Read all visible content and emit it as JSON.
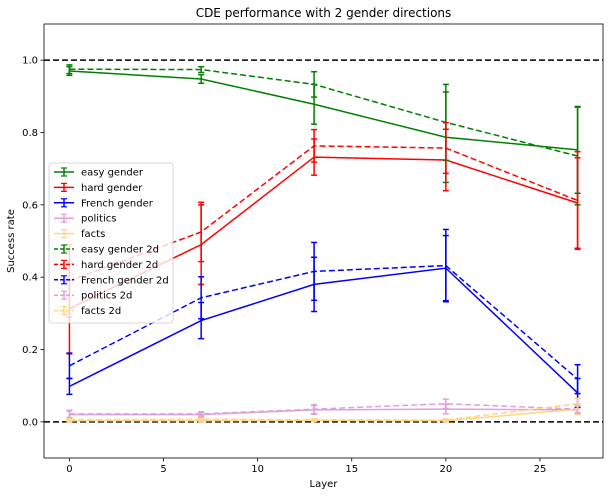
{
  "chart_data": {
    "type": "line",
    "title": "CDE performance with 2 gender directions",
    "xlabel": "Layer",
    "ylabel": "Success rate",
    "xlim": [
      -1.35,
      28.35
    ],
    "ylim": [
      -0.1,
      1.1
    ],
    "xticks": [
      0,
      5,
      10,
      15,
      20,
      25
    ],
    "yticks": [
      0.0,
      0.2,
      0.4,
      0.6,
      0.8,
      1.0
    ],
    "reference_lines": [
      0.0,
      1.0
    ],
    "x": [
      0,
      7,
      13,
      20,
      27
    ],
    "legend_position": "center-left",
    "series": [
      {
        "name": "easy gender",
        "color": "#008000",
        "dash": "solid",
        "values": [
          0.97,
          0.948,
          0.878,
          0.787,
          0.752
        ],
        "errors": [
          0.012,
          0.012,
          0.055,
          0.125,
          0.12
        ]
      },
      {
        "name": "hard gender",
        "color": "#ff0000",
        "dash": "solid",
        "values": [
          0.313,
          0.49,
          0.732,
          0.724,
          0.605
        ],
        "errors": [
          0.125,
          0.11,
          0.05,
          0.085,
          0.125
        ]
      },
      {
        "name": "French gender",
        "color": "#0000ff",
        "dash": "solid",
        "values": [
          0.098,
          0.28,
          0.38,
          0.425,
          0.08
        ],
        "errors": [
          0.022,
          0.05,
          0.075,
          0.09,
          0.04
        ]
      },
      {
        "name": "politics",
        "color": "#dda0dd",
        "dash": "solid",
        "values": [
          0.02,
          0.02,
          0.033,
          0.035,
          0.033
        ],
        "errors": [
          0.01,
          0.006,
          0.012,
          0.013,
          0.01
        ]
      },
      {
        "name": "facts",
        "color": "#ffd580",
        "dash": "solid",
        "values": [
          0.003,
          0.003,
          0.004,
          0.003,
          0.035
        ],
        "errors": [
          0.003,
          0.003,
          0.003,
          0.003,
          0.015
        ]
      },
      {
        "name": "easy gender 2d",
        "color": "#008000",
        "dash": "dashed",
        "values": [
          0.975,
          0.974,
          0.933,
          0.828,
          0.735
        ],
        "errors": [
          0.012,
          0.008,
          0.035,
          0.105,
          0.135
        ]
      },
      {
        "name": "hard gender 2d",
        "color": "#ff0000",
        "dash": "dashed",
        "values": [
          0.39,
          0.525,
          0.763,
          0.757,
          0.612
        ],
        "errors": [
          0.1,
          0.082,
          0.045,
          0.07,
          0.135
        ]
      },
      {
        "name": "French gender 2d",
        "color": "#0000ff",
        "dash": "dashed",
        "values": [
          0.155,
          0.343,
          0.416,
          0.432,
          0.118
        ],
        "errors": [
          0.035,
          0.058,
          0.08,
          0.1,
          0.04
        ]
      },
      {
        "name": "politics 2d",
        "color": "#dda0dd",
        "dash": "dashed",
        "values": [
          0.022,
          0.022,
          0.035,
          0.05,
          0.035
        ],
        "errors": [
          0.01,
          0.006,
          0.012,
          0.013,
          0.01
        ]
      },
      {
        "name": "facts 2d",
        "color": "#ffd580",
        "dash": "dashed",
        "values": [
          0.006,
          0.007,
          0.006,
          0.005,
          0.05
        ],
        "errors": [
          0.003,
          0.003,
          0.003,
          0.003,
          0.015
        ]
      }
    ]
  }
}
